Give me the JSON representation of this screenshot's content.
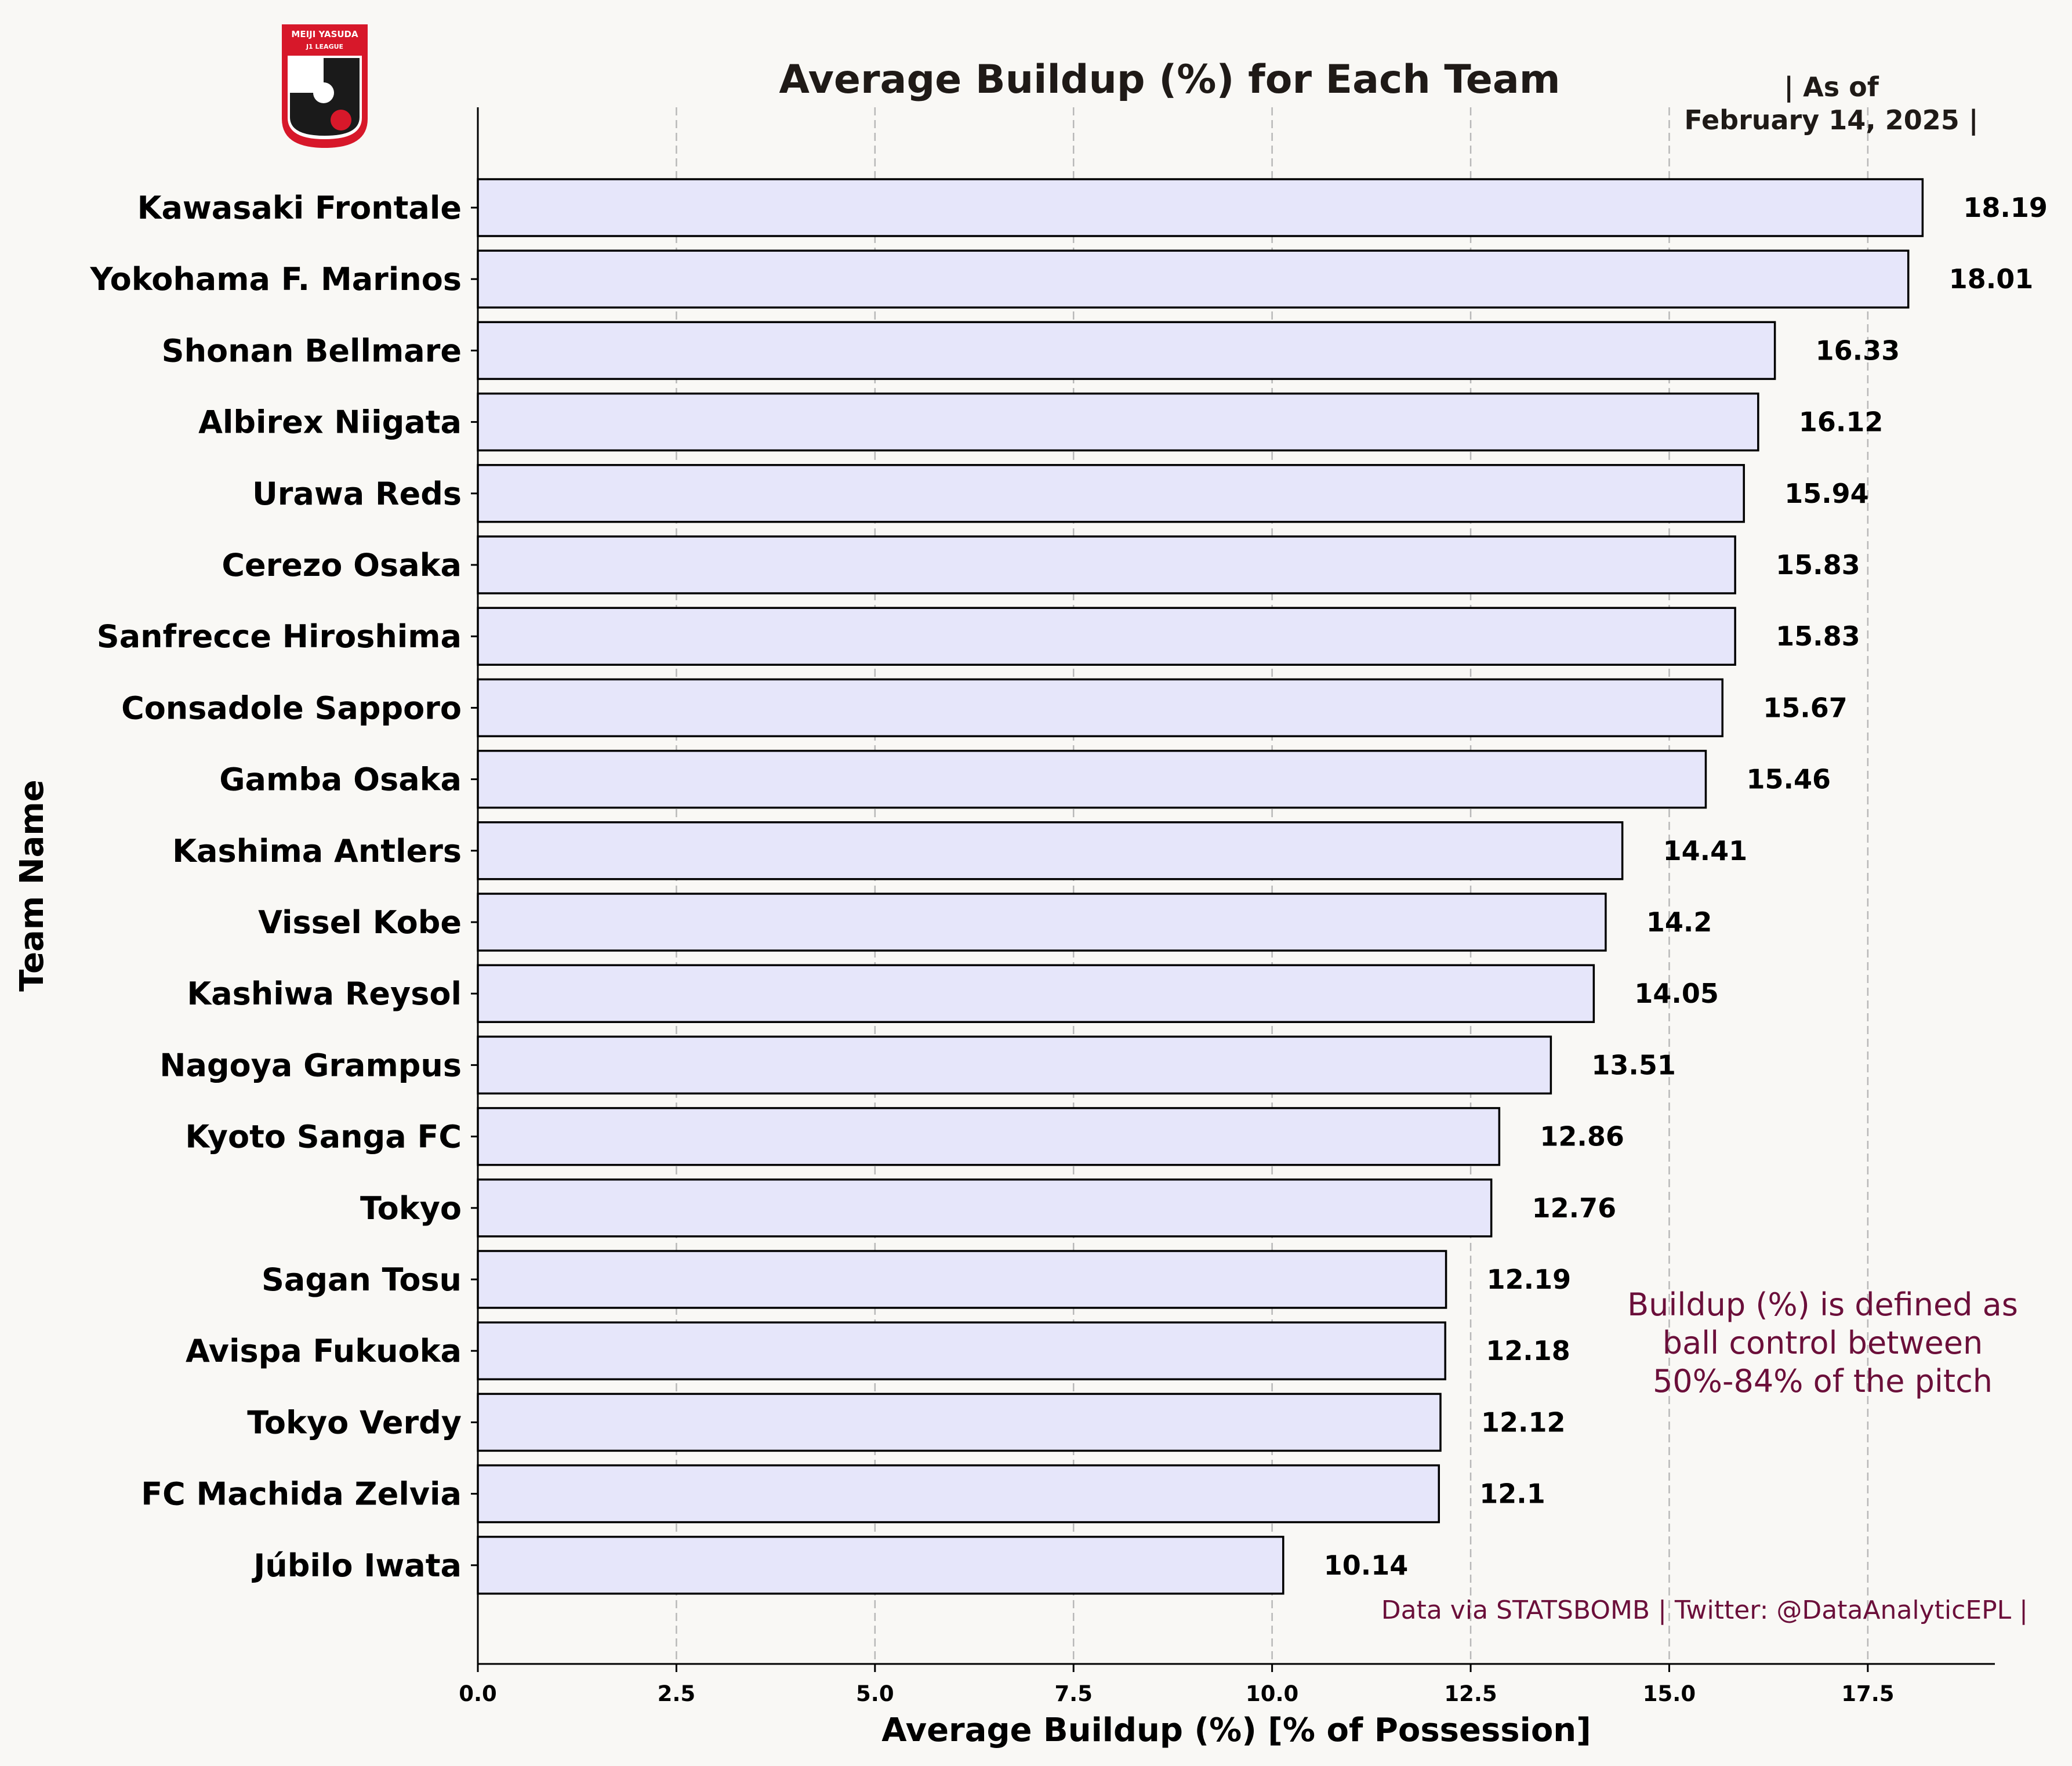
{
  "chart_data": {
    "type": "bar",
    "orientation": "horizontal",
    "title": "Average Buildup (%) for Each Team",
    "date_note": [
      "| As of",
      "February 14, 2025 |"
    ],
    "xlabel": "Average Buildup (%) [% of Possession]",
    "ylabel": "Team Name",
    "xlim": [
      0,
      19.1
    ],
    "xticks": [
      0.0,
      2.5,
      5.0,
      7.5,
      10.0,
      12.5,
      15.0,
      17.5
    ],
    "xtick_labels": [
      "0.0",
      "2.5",
      "5.0",
      "7.5",
      "10.0",
      "12.5",
      "15.0",
      "17.5"
    ],
    "grid": "vertical-dashed",
    "categories": [
      "Kawasaki Frontale",
      "Yokohama F. Marinos",
      "Shonan Bellmare",
      "Albirex Niigata",
      "Urawa Reds",
      "Cerezo Osaka",
      "Sanfrecce Hiroshima",
      "Consadole Sapporo",
      "Gamba Osaka",
      "Kashima Antlers",
      "Vissel Kobe",
      "Kashiwa Reysol",
      "Nagoya Grampus",
      "Kyoto Sanga FC",
      "Tokyo",
      "Sagan Tosu",
      "Avispa Fukuoka",
      "Tokyo Verdy",
      "FC Machida Zelvia",
      "Júbilo Iwata"
    ],
    "values": [
      18.19,
      18.01,
      16.33,
      16.12,
      15.94,
      15.83,
      15.83,
      15.67,
      15.46,
      14.41,
      14.2,
      14.05,
      13.51,
      12.86,
      12.76,
      12.19,
      12.18,
      12.12,
      12.1,
      10.14
    ],
    "value_labels": [
      "18.19",
      "18.01",
      "16.33",
      "16.12",
      "15.94",
      "15.83",
      "15.83",
      "15.67",
      "15.46",
      "14.41",
      "14.2",
      "14.05",
      "13.51",
      "12.86",
      "12.76",
      "12.19",
      "12.18",
      "12.12",
      "12.1",
      "10.14"
    ],
    "annotation": [
      "Buildup (%) is defined as",
      "ball control between",
      "50%-84% of the pitch"
    ],
    "footer": "Data via STATSBOMB | Twitter: @DataAnalyticEPL |",
    "logo_text": [
      "MEIJI YASUDA",
      "J1 LEAGUE"
    ],
    "colors": {
      "background": "#f9f8f5",
      "bar_fill": "#e6e6fa",
      "bar_edge": "#000000",
      "annotation": "#6b0f3a",
      "grid": "#b8b8b8",
      "logo_red": "#d7182a"
    }
  }
}
